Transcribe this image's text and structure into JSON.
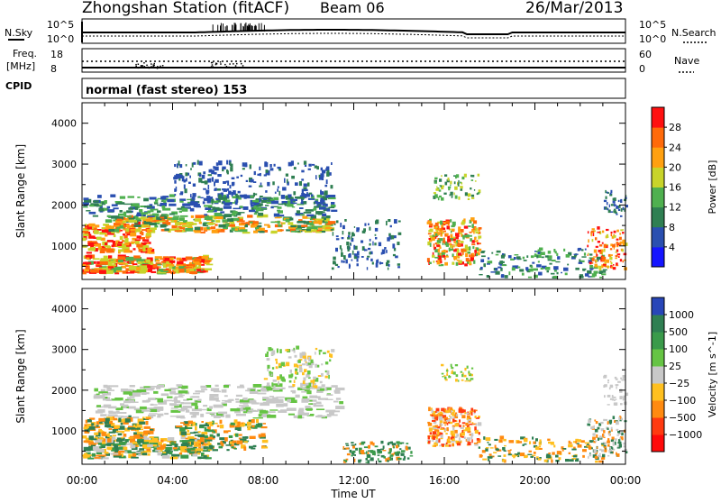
{
  "header": {
    "station": "Zhongshan Station (fitACF)",
    "beam": "Beam 06",
    "date": "26/Mar/2013"
  },
  "strips": {
    "nsky_label": "N.Sky",
    "nsky_ticks": [
      "10^5",
      "10^0"
    ],
    "nsearch_label": "N.Search",
    "nsearch_ticks": [
      "10^5",
      "10^0"
    ],
    "freq_label_line1": "Freq.",
    "freq_label_line2": "[MHz]",
    "freq_ticks": [
      "18",
      "8"
    ],
    "nave_label": "Nave",
    "nave_ticks": [
      "60",
      "0"
    ],
    "cpid_label": "CPID",
    "cpid_value": "normal (fast stereo) 153"
  },
  "chart_data": [
    {
      "type": "heatmap",
      "name": "power-panel",
      "ylabel": "Slant Range [km]",
      "ylim": [
        180,
        4500
      ],
      "yticks": [
        "1000",
        "2000",
        "3000",
        "4000"
      ],
      "xticks": [
        "00:00",
        "04:00",
        "08:00",
        "12:00",
        "16:00",
        "20:00",
        "00:00"
      ],
      "colorbar": {
        "label": "Power [dB]",
        "ticks": [
          "4",
          "8",
          "12",
          "16",
          "20",
          "24",
          "28"
        ],
        "colors": [
          "#1515ff",
          "#2a4fb0",
          "#2f7f52",
          "#4fb04f",
          "#c8d42a",
          "#ffa010",
          "#ff6a0a",
          "#ff1010"
        ]
      }
    },
    {
      "type": "heatmap",
      "name": "velocity-panel",
      "ylabel": "Slant Range [km]",
      "ylim": [
        180,
        4500
      ],
      "yticks": [
        "1000",
        "2000",
        "3000",
        "4000"
      ],
      "xticks": [
        "00:00",
        "04:00",
        "08:00",
        "12:00",
        "16:00",
        "20:00",
        "00:00"
      ],
      "xlabel": "Time UT",
      "colorbar": {
        "label": "Velocity [m s^-1]",
        "ticks": [
          "1000",
          "500",
          "100",
          "25",
          "−25",
          "−100",
          "−500",
          "−1000"
        ],
        "colors": [
          "#2846b8",
          "#2f7f52",
          "#3a9a4a",
          "#66c444",
          "#c8c8c8",
          "#ffc020",
          "#ff8a10",
          "#ff3a10",
          "#ff0a0a"
        ]
      }
    }
  ]
}
